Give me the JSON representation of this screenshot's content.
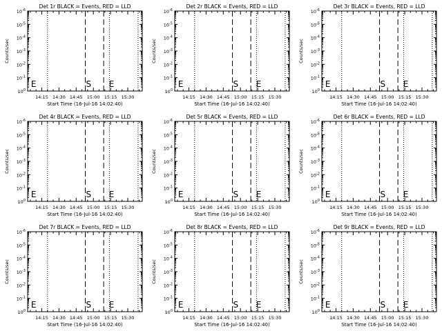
{
  "chart_data": [
    {
      "type": "line",
      "title": "Det 1r BLACK = Events, RED = LLD",
      "ylabel": "Counts/sec",
      "xlabel": "Start Time (16-Jul-16 14:02:40)",
      "x_ticks": [
        "14:15",
        "14:30",
        "14:45",
        "15:00",
        "15:15",
        "15:30"
      ],
      "y_ticks": [
        "10^0",
        "10^-1",
        "10^-2",
        "10^-3",
        "10^-4",
        "10^-5",
        "10^-6"
      ],
      "dotted_lines": [
        "14:20",
        "15:14",
        "15:39"
      ],
      "dashed_lines": [
        "14:53",
        "15:09"
      ],
      "markers": [
        {
          "text": "E",
          "x": "14:05"
        },
        {
          "text": "S",
          "x": "14:53"
        },
        {
          "text": "E",
          "x": "15:13"
        }
      ],
      "series": []
    },
    {
      "type": "line",
      "title": "Det 2r BLACK = Events, RED = LLD",
      "ylabel": "Counts/sec",
      "xlabel": "Start Time (16-Jul-16 14:02:40)",
      "x_ticks": [
        "14:15",
        "14:30",
        "14:45",
        "15:00",
        "15:15",
        "15:30"
      ],
      "y_ticks": [
        "10^0",
        "10^-1",
        "10^-2",
        "10^-3",
        "10^-4",
        "10^-5",
        "10^-6"
      ],
      "dotted_lines": [
        "14:20",
        "15:14",
        "15:39"
      ],
      "dashed_lines": [
        "14:53",
        "15:09"
      ],
      "markers": [
        {
          "text": "E",
          "x": "14:05"
        },
        {
          "text": "S",
          "x": "14:53"
        },
        {
          "text": "E",
          "x": "15:13"
        }
      ],
      "series": []
    },
    {
      "type": "line",
      "title": "Det 3r BLACK = Events, RED = LLD",
      "ylabel": "Counts/sec",
      "xlabel": "Start Time (16-Jul-16 14:02:40)",
      "x_ticks": [
        "14:15",
        "14:30",
        "14:45",
        "15:00",
        "15:15",
        "15:30"
      ],
      "y_ticks": [
        "10^0",
        "10^-1",
        "10^-2",
        "10^-3",
        "10^-4",
        "10^-5",
        "10^-6"
      ],
      "dotted_lines": [
        "14:20",
        "15:14",
        "15:39"
      ],
      "dashed_lines": [
        "14:53",
        "15:09"
      ],
      "markers": [
        {
          "text": "E",
          "x": "14:05"
        },
        {
          "text": "S",
          "x": "14:53"
        },
        {
          "text": "E",
          "x": "15:13"
        }
      ],
      "series": []
    },
    {
      "type": "line",
      "title": "Det 4r BLACK = Events, RED = LLD",
      "ylabel": "Counts/sec",
      "xlabel": "Start Time (16-Jul-16 14:02:40)",
      "x_ticks": [
        "14:15",
        "14:30",
        "14:45",
        "15:00",
        "15:15",
        "15:30"
      ],
      "y_ticks": [
        "10^0",
        "10^-1",
        "10^-2",
        "10^-3",
        "10^-4",
        "10^-5",
        "10^-6"
      ],
      "dotted_lines": [
        "14:20",
        "15:14",
        "15:39"
      ],
      "dashed_lines": [
        "14:53",
        "15:09"
      ],
      "markers": [
        {
          "text": "E",
          "x": "14:05"
        },
        {
          "text": "S",
          "x": "14:53"
        },
        {
          "text": "E",
          "x": "15:13"
        }
      ],
      "series": []
    },
    {
      "type": "line",
      "title": "Det 5r BLACK = Events, RED = LLD",
      "ylabel": "Counts/sec",
      "xlabel": "Start Time (16-Jul-16 14:02:40)",
      "x_ticks": [
        "14:15",
        "14:30",
        "14:45",
        "15:00",
        "15:15",
        "15:30"
      ],
      "y_ticks": [
        "10^0",
        "10^-1",
        "10^-2",
        "10^-3",
        "10^-4",
        "10^-5",
        "10^-6"
      ],
      "dotted_lines": [
        "14:20",
        "15:14",
        "15:39"
      ],
      "dashed_lines": [
        "14:53",
        "15:09"
      ],
      "markers": [
        {
          "text": "E",
          "x": "14:05"
        },
        {
          "text": "S",
          "x": "14:53"
        },
        {
          "text": "E",
          "x": "15:13"
        }
      ],
      "series": []
    },
    {
      "type": "line",
      "title": "Det 6r BLACK = Events, RED = LLD",
      "ylabel": "Counts/sec",
      "xlabel": "Start Time (16-Jul-16 14:02:40)",
      "x_ticks": [
        "14:15",
        "14:30",
        "14:45",
        "15:00",
        "15:15",
        "15:30"
      ],
      "y_ticks": [
        "10^0",
        "10^-1",
        "10^-2",
        "10^-3",
        "10^-4",
        "10^-5",
        "10^-6"
      ],
      "dotted_lines": [
        "14:20",
        "15:14",
        "15:39"
      ],
      "dashed_lines": [
        "14:53",
        "15:09"
      ],
      "markers": [
        {
          "text": "E",
          "x": "14:05"
        },
        {
          "text": "S",
          "x": "14:53"
        },
        {
          "text": "E",
          "x": "15:13"
        }
      ],
      "series": []
    },
    {
      "type": "line",
      "title": "Det 7r BLACK = Events, RED = LLD",
      "ylabel": "Counts/sec",
      "xlabel": "Start Time (16-Jul-16 14:02:40)",
      "x_ticks": [
        "14:15",
        "14:30",
        "14:45",
        "15:00",
        "15:15",
        "15:30"
      ],
      "y_ticks": [
        "10^0",
        "10^-1",
        "10^-2",
        "10^-3",
        "10^-4",
        "10^-5",
        "10^-6"
      ],
      "dotted_lines": [
        "14:20",
        "15:14",
        "15:39"
      ],
      "dashed_lines": [
        "14:53",
        "15:09"
      ],
      "markers": [
        {
          "text": "E",
          "x": "14:05"
        },
        {
          "text": "S",
          "x": "14:53"
        },
        {
          "text": "E",
          "x": "15:13"
        }
      ],
      "series": []
    },
    {
      "type": "line",
      "title": "Det 8r BLACK = Events, RED = LLD",
      "ylabel": "Counts/sec",
      "xlabel": "Start Time (16-Jul-16 14:02:40)",
      "x_ticks": [
        "14:15",
        "14:30",
        "14:45",
        "15:00",
        "15:15",
        "15:30"
      ],
      "y_ticks": [
        "10^0",
        "10^-1",
        "10^-2",
        "10^-3",
        "10^-4",
        "10^-5",
        "10^-6"
      ],
      "dotted_lines": [
        "14:20",
        "15:14",
        "15:39"
      ],
      "dashed_lines": [
        "14:53",
        "15:09"
      ],
      "markers": [
        {
          "text": "E",
          "x": "14:05"
        },
        {
          "text": "S",
          "x": "14:53"
        },
        {
          "text": "E",
          "x": "15:13"
        }
      ],
      "series": []
    },
    {
      "type": "line",
      "title": "Det 9r BLACK = Events, RED = LLD",
      "ylabel": "Counts/sec",
      "xlabel": "Start Time (16-Jul-16 14:02:40)",
      "x_ticks": [
        "14:15",
        "14:30",
        "14:45",
        "15:00",
        "15:15",
        "15:30"
      ],
      "y_ticks": [
        "10^0",
        "10^-1",
        "10^-2",
        "10^-3",
        "10^-4",
        "10^-5",
        "10^-6"
      ],
      "dotted_lines": [
        "14:20",
        "15:14",
        "15:39"
      ],
      "dashed_lines": [
        "14:53",
        "15:09"
      ],
      "markers": [
        {
          "text": "E",
          "x": "14:05"
        },
        {
          "text": "S",
          "x": "14:53"
        },
        {
          "text": "E",
          "x": "15:13"
        }
      ],
      "series": []
    }
  ]
}
